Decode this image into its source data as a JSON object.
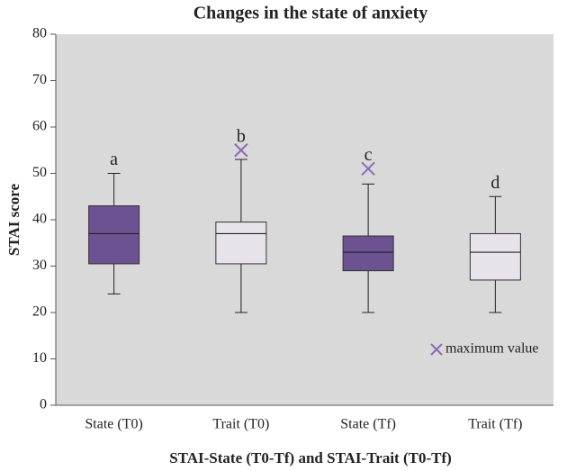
{
  "chart_data": {
    "type": "box",
    "title": "Changes in the state of anxiety",
    "ylabel": "STAI score",
    "xlabel": "STAI-State (T0-Tf) and STAI-Trait (T0-Tf)",
    "categories": [
      "State (T0)",
      "Trait (T0)",
      "State (Tf)",
      "Trait (Tf)"
    ],
    "min": [
      24,
      20,
      20,
      20
    ],
    "q1": [
      30.5,
      30.5,
      29,
      27
    ],
    "median": [
      37,
      37,
      33,
      33
    ],
    "q3": [
      43,
      39.5,
      36.5,
      37
    ],
    "max": [
      50,
      53,
      47.7,
      45
    ],
    "max_marker": [
      null,
      55,
      51,
      null
    ],
    "group_labels": [
      "a",
      "b",
      "c",
      "d"
    ],
    "colors": [
      "#6b5290",
      "#e6e4e8",
      "#6b5290",
      "#e6e4e8"
    ],
    "marker_color": "#8a6db0",
    "legend": "maximum value",
    "legend_position": "lower right",
    "ylim": [
      0,
      80
    ],
    "yticks": [
      0,
      10,
      20,
      30,
      40,
      50,
      60,
      70,
      80
    ],
    "grid": false
  }
}
